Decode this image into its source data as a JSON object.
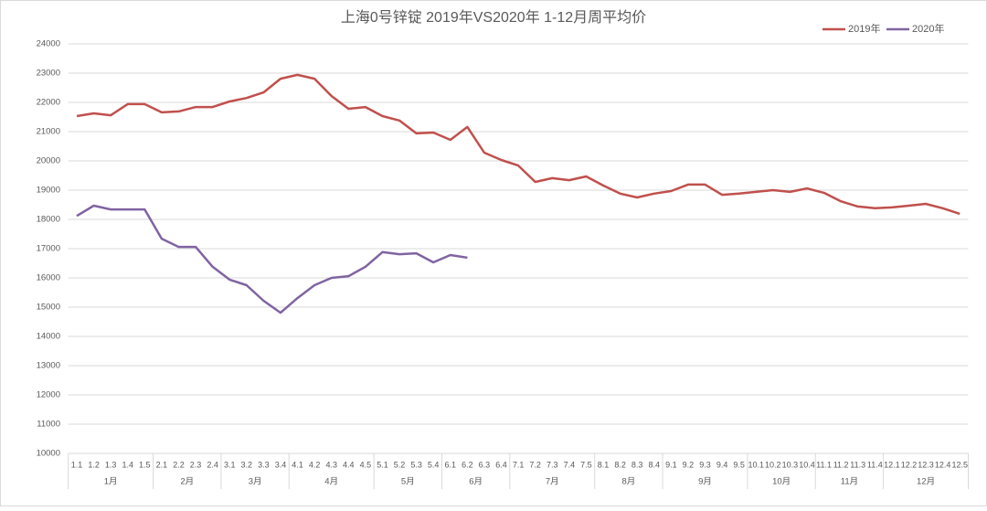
{
  "chart_data": {
    "type": "line",
    "title": "上海0号锌锭  2019年VS2020年  1-12月周平均价",
    "categories": [
      "1.1",
      "1.2",
      "1.3",
      "1.4",
      "1.5",
      "2.1",
      "2.2",
      "2.3",
      "2.4",
      "3.1",
      "3.2",
      "3.3",
      "3.4",
      "4.1",
      "4.2",
      "4.3",
      "4.4",
      "4.5",
      "5.1",
      "5.2",
      "5.3",
      "5.4",
      "6.1",
      "6.2",
      "6.3",
      "6.4",
      "7.1",
      "7.2",
      "7.3",
      "7.4",
      "7.5",
      "8.1",
      "8.2",
      "8.3",
      "8.4",
      "9.1",
      "9.2",
      "9.3",
      "9.4",
      "9.5",
      "10.1",
      "10.2",
      "10.3",
      "10.4",
      "11.1",
      "11.2",
      "11.3",
      "11.4",
      "12.1",
      "12.2",
      "12.3",
      "12.4",
      "12.5"
    ],
    "months": [
      "1月",
      "2月",
      "3月",
      "4月",
      "5月",
      "6月",
      "7月",
      "8月",
      "9月",
      "10月",
      "11月",
      "12月"
    ],
    "series": [
      {
        "name": "2019年",
        "color": "#c0504d",
        "values": [
          21530,
          21625,
          21560,
          21940,
          21940,
          21660,
          21690,
          21840,
          21840,
          22030,
          22150,
          22340,
          22810,
          22940,
          22810,
          22220,
          21780,
          21840,
          21530,
          21380,
          20940,
          20970,
          20720,
          21160,
          20280,
          20030,
          19840,
          19280,
          19410,
          19340,
          19470,
          19160,
          18880,
          18750,
          18880,
          18970,
          19190,
          19190,
          18840,
          18880,
          18940,
          19000,
          18940,
          19060,
          18910,
          18620,
          18440,
          18380,
          18410,
          18470,
          18530,
          18380,
          18190
        ]
      },
      {
        "name": "2020年",
        "color": "#8064a2",
        "values": [
          18120,
          18470,
          18340,
          18340,
          18340,
          17340,
          17060,
          17060,
          16380,
          15940,
          15750,
          15220,
          14810,
          15310,
          15750,
          16000,
          16060,
          16380,
          16880,
          16810,
          16840,
          16530,
          16780,
          16690,
          null,
          null,
          null,
          null,
          null,
          null,
          null,
          null,
          null,
          null,
          null,
          null,
          null,
          null,
          null,
          null,
          null,
          null,
          null,
          null,
          null,
          null,
          null,
          null,
          null,
          null,
          null,
          null,
          null
        ]
      }
    ],
    "ylim": [
      10000,
      24000
    ],
    "yticks": [
      10000,
      11000,
      12000,
      13000,
      14000,
      15000,
      16000,
      17000,
      18000,
      19000,
      20000,
      21000,
      22000,
      23000,
      24000
    ],
    "grid": true,
    "legend": "top-right"
  }
}
